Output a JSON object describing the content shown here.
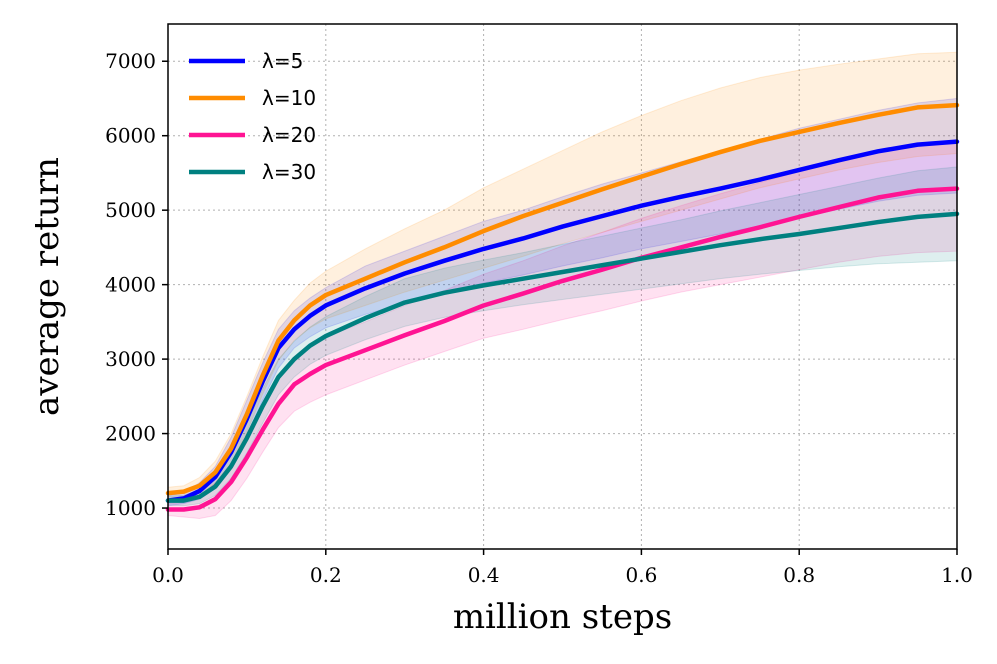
{
  "chart_data": {
    "type": "line",
    "title": "",
    "xlabel": "million steps",
    "ylabel": "average return",
    "xlim": [
      0.0,
      1.0
    ],
    "ylim": [
      450,
      7500
    ],
    "grid": true,
    "legend_position": "top-left",
    "x_ticks": [
      0.0,
      0.2,
      0.4,
      0.6,
      0.8,
      1.0
    ],
    "x_tick_labels": [
      "0.0",
      "0.2",
      "0.4",
      "0.6",
      "0.8",
      "1.0"
    ],
    "y_ticks": [
      1000,
      2000,
      3000,
      4000,
      5000,
      6000,
      7000
    ],
    "y_tick_labels": [
      "1000",
      "2000",
      "3000",
      "4000",
      "5000",
      "6000",
      "7000"
    ],
    "x": [
      0.0,
      0.02,
      0.04,
      0.06,
      0.08,
      0.1,
      0.12,
      0.14,
      0.16,
      0.18,
      0.2,
      0.25,
      0.3,
      0.35,
      0.4,
      0.45,
      0.5,
      0.55,
      0.6,
      0.65,
      0.7,
      0.75,
      0.8,
      0.85,
      0.9,
      0.95,
      1.0
    ],
    "series": [
      {
        "name": "λ=5",
        "color": "#0000ff",
        "mean": [
          1100,
          1130,
          1230,
          1420,
          1750,
          2200,
          2700,
          3150,
          3400,
          3580,
          3720,
          3950,
          4150,
          4320,
          4480,
          4620,
          4780,
          4920,
          5060,
          5180,
          5290,
          5410,
          5540,
          5670,
          5790,
          5880,
          5920
        ],
        "lower": [
          1030,
          1060,
          1120,
          1260,
          1550,
          1950,
          2450,
          2880,
          3150,
          3300,
          3420,
          3600,
          3750,
          3900,
          4020,
          4130,
          4250,
          4360,
          4480,
          4580,
          4680,
          4790,
          4900,
          5010,
          5120,
          5200,
          5230
        ],
        "upper": [
          1170,
          1200,
          1340,
          1560,
          1950,
          2450,
          2950,
          3400,
          3650,
          3820,
          3960,
          4250,
          4450,
          4650,
          4850,
          5000,
          5180,
          5350,
          5500,
          5650,
          5800,
          5950,
          6100,
          6220,
          6340,
          6440,
          6500
        ]
      },
      {
        "name": "λ=10",
        "color": "#ff8c00",
        "mean": [
          1200,
          1220,
          1300,
          1480,
          1800,
          2260,
          2780,
          3250,
          3520,
          3720,
          3860,
          4080,
          4300,
          4500,
          4720,
          4920,
          5100,
          5280,
          5450,
          5620,
          5780,
          5930,
          6050,
          6170,
          6280,
          6380,
          6410
        ],
        "lower": [
          1120,
          1140,
          1190,
          1330,
          1600,
          2020,
          2530,
          2980,
          3250,
          3420,
          3540,
          3720,
          3900,
          4060,
          4220,
          4380,
          4550,
          4700,
          4850,
          5000,
          5150,
          5300,
          5420,
          5540,
          5640,
          5720,
          5760
        ],
        "upper": [
          1280,
          1300,
          1410,
          1630,
          2000,
          2500,
          3030,
          3520,
          3790,
          4020,
          4180,
          4480,
          4750,
          5000,
          5300,
          5550,
          5800,
          6050,
          6270,
          6470,
          6640,
          6780,
          6880,
          6960,
          7030,
          7100,
          7120
        ]
      },
      {
        "name": "λ=20",
        "color": "#ff1493",
        "mean": [
          980,
          980,
          1010,
          1120,
          1350,
          1680,
          2050,
          2400,
          2660,
          2800,
          2920,
          3120,
          3320,
          3510,
          3720,
          3880,
          4050,
          4200,
          4360,
          4500,
          4640,
          4770,
          4910,
          5040,
          5170,
          5260,
          5290
        ],
        "lower": [
          900,
          880,
          860,
          900,
          1100,
          1400,
          1750,
          2080,
          2300,
          2420,
          2520,
          2720,
          2920,
          3100,
          3280,
          3400,
          3530,
          3650,
          3780,
          3900,
          4000,
          4100,
          4200,
          4300,
          4380,
          4430,
          4450
        ],
        "upper": [
          1060,
          1080,
          1160,
          1340,
          1600,
          1960,
          2350,
          2720,
          3000,
          3160,
          3300,
          3500,
          3720,
          3920,
          4140,
          4320,
          4520,
          4700,
          4890,
          5060,
          5220,
          5370,
          5520,
          5660,
          5790,
          5880,
          5920
        ]
      },
      {
        "name": "λ=30",
        "color": "#008080",
        "mean": [
          1100,
          1100,
          1150,
          1290,
          1560,
          1940,
          2370,
          2760,
          3000,
          3180,
          3310,
          3550,
          3760,
          3890,
          3990,
          4080,
          4170,
          4260,
          4350,
          4440,
          4530,
          4610,
          4680,
          4760,
          4840,
          4910,
          4950
        ],
        "lower": [
          1040,
          1030,
          1060,
          1170,
          1400,
          1740,
          2140,
          2520,
          2760,
          2930,
          3050,
          3260,
          3440,
          3560,
          3650,
          3730,
          3800,
          3870,
          3940,
          4010,
          4080,
          4140,
          4190,
          4240,
          4280,
          4300,
          4320
        ],
        "upper": [
          1160,
          1170,
          1240,
          1410,
          1720,
          2140,
          2600,
          3000,
          3240,
          3430,
          3570,
          3840,
          4080,
          4220,
          4330,
          4430,
          4540,
          4650,
          4760,
          4870,
          4990,
          5100,
          5210,
          5320,
          5430,
          5530,
          5580
        ]
      }
    ]
  }
}
